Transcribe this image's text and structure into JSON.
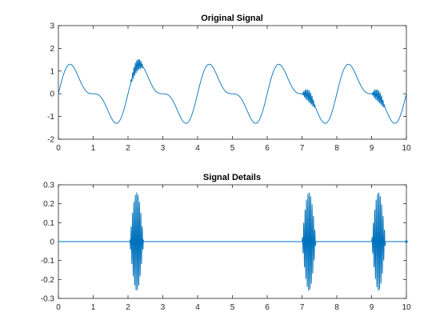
{
  "chart_data": [
    {
      "type": "line",
      "title": "Original Signal",
      "xlabel": "",
      "ylabel": "",
      "xlim": [
        0,
        10
      ],
      "ylim": [
        -2,
        3
      ],
      "xticks": [
        0,
        1,
        2,
        3,
        4,
        5,
        6,
        7,
        8,
        9,
        10
      ],
      "xtick_labels": [
        "0",
        "1",
        "2",
        "3",
        "4",
        "5",
        "6",
        "7",
        "8",
        "9",
        "10"
      ],
      "yticks": [
        -2,
        -1,
        0,
        1,
        2,
        3
      ],
      "ytick_labels": [
        "-2",
        "-1",
        "0",
        "1",
        "2",
        "3"
      ],
      "grid": false,
      "series": [
        {
          "color": "#0072BD",
          "base_components": [
            {
              "amplitude": 1.0,
              "frequency_hz": 0.5
            },
            {
              "amplitude": 0.5,
              "frequency_hz": 1.0
            }
          ],
          "bursts": [
            {
              "center": 2.25,
              "half_width": 0.2,
              "peak_amplitude": 0.26
            },
            {
              "center": 7.2,
              "half_width": 0.2,
              "peak_amplitude": 0.26
            },
            {
              "center": 9.2,
              "half_width": 0.2,
              "peak_amplitude": 0.26
            }
          ],
          "burst_frequency_hz": 25,
          "x_range": [
            0,
            10
          ]
        }
      ]
    },
    {
      "type": "line",
      "title": "Signal Details",
      "xlabel": "",
      "ylabel": "",
      "xlim": [
        0,
        10
      ],
      "ylim": [
        -0.3,
        0.3
      ],
      "xticks": [
        0,
        1,
        2,
        3,
        4,
        5,
        6,
        7,
        8,
        9,
        10
      ],
      "xtick_labels": [
        "0",
        "1",
        "2",
        "3",
        "4",
        "5",
        "6",
        "7",
        "8",
        "9",
        "10"
      ],
      "yticks": [
        -0.3,
        -0.2,
        -0.1,
        0,
        0.1,
        0.2,
        0.3
      ],
      "ytick_labels": [
        "-0.3",
        "-0.2",
        "-0.1",
        "0",
        "0.1",
        "0.2",
        "0.3"
      ],
      "grid": false,
      "series": [
        {
          "color": "#0072BD",
          "base_components": [],
          "bursts": [
            {
              "center": 2.25,
              "half_width": 0.2,
              "peak_amplitude": 0.26
            },
            {
              "center": 7.2,
              "half_width": 0.2,
              "peak_amplitude": 0.26
            },
            {
              "center": 9.2,
              "half_width": 0.2,
              "peak_amplitude": 0.26
            }
          ],
          "burst_frequency_hz": 25,
          "x_range": [
            0,
            10
          ]
        }
      ]
    }
  ]
}
